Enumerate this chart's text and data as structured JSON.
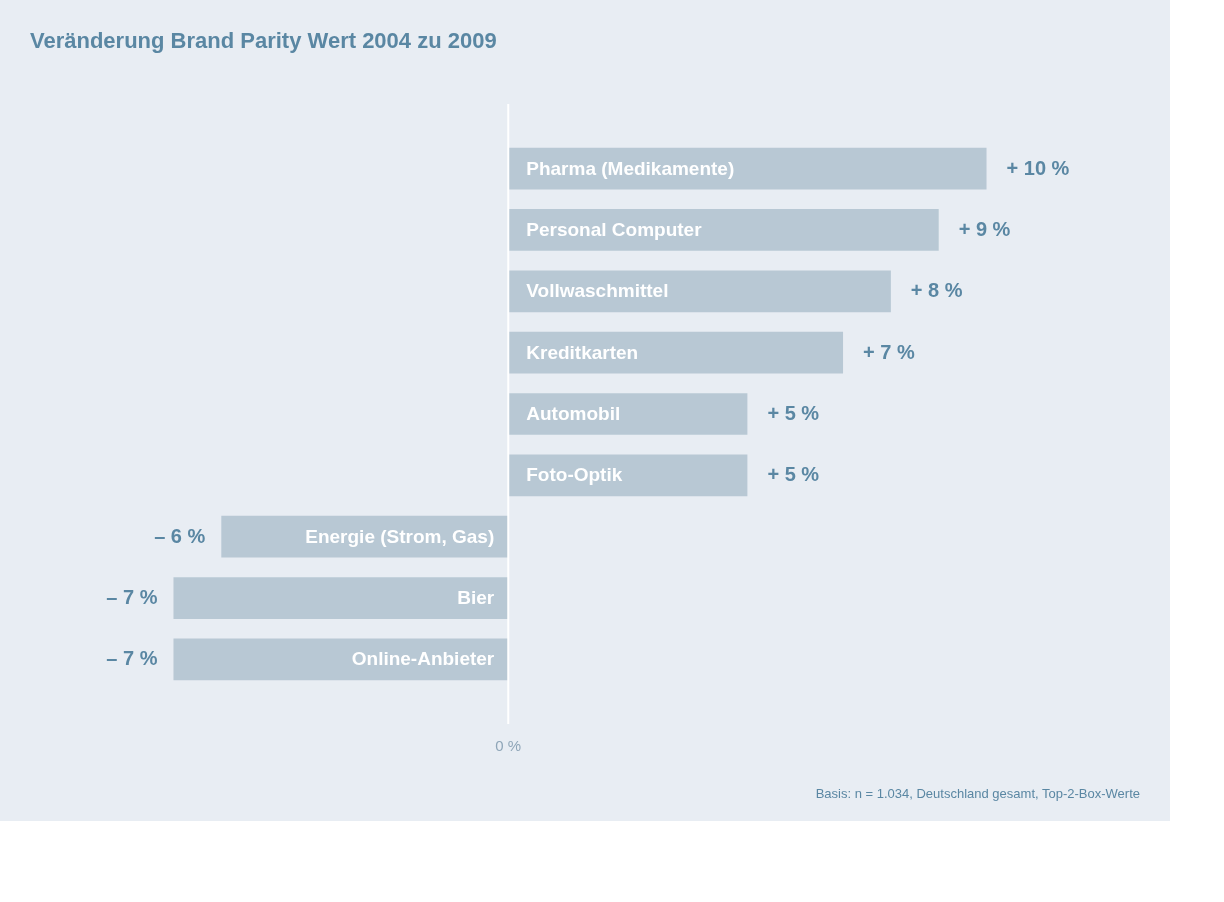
{
  "chart_data": {
    "type": "bar",
    "orientation": "horizontal",
    "title": "Veränderung Brand Parity Wert 2004 zu 2009",
    "categories": [
      "Pharma (Medikamente)",
      "Personal Computer",
      "Vollwaschmittel",
      "Kreditkarten",
      "Automobil",
      "Foto-Optik",
      "Energie (Strom, Gas)",
      "Bier",
      "Online-Anbieter"
    ],
    "values": [
      10,
      9,
      8,
      7,
      5,
      5,
      -6,
      -7,
      -7
    ],
    "value_labels": [
      "+ 10 %",
      "+ 9 %",
      "+ 8 %",
      "+ 7 %",
      "+ 5 %",
      "+ 5 %",
      "– 6 %",
      "– 7 %",
      "– 7 %"
    ],
    "color": "#b8c8d4",
    "annotations": [
      "0 %",
      "Basis: n = 1.034, Deutschland gesamt, Top-2-Box-Werte"
    ]
  }
}
